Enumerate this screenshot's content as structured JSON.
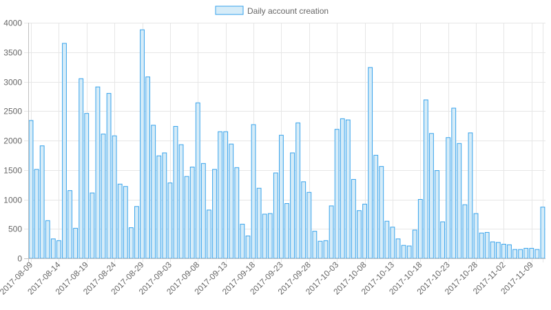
{
  "colors": {
    "bar_fill": "#d6ecf8",
    "bar_stroke": "#36a2eb",
    "grid": "#e6e6e6",
    "axis": "#bfbfbf",
    "text": "#666666"
  },
  "chart_data": {
    "type": "bar",
    "title": "",
    "xlabel": "",
    "ylabel": "",
    "ylim": [
      0,
      4000
    ],
    "yticks": [
      0,
      500,
      1000,
      1500,
      2000,
      2500,
      3000,
      3500,
      4000
    ],
    "grid": true,
    "legend_position": "top-center",
    "start_date": "2017-08-09",
    "label_every": 5,
    "x_tick_labels": [
      "2017-08-09",
      "2017-08-14",
      "2017-08-19",
      "2017-08-24",
      "2017-08-29",
      "2017-09-03",
      "2017-09-08",
      "2017-09-13",
      "2017-09-18",
      "2017-09-23",
      "2017-09-28",
      "2017-10-03",
      "2017-10-08",
      "2017-10-13",
      "2017-10-18",
      "2017-10-23",
      "2017-10-28",
      "2017-11-02",
      "2017-11-09"
    ],
    "series": [
      {
        "name": "Daily account creation",
        "values": [
          2340,
          1510,
          1910,
          640,
          330,
          300,
          3650,
          1150,
          510,
          3050,
          2460,
          1110,
          2910,
          2110,
          2800,
          2080,
          1260,
          1220,
          520,
          880,
          3880,
          3080,
          2260,
          1740,
          1790,
          1280,
          2240,
          1930,
          1390,
          1550,
          2640,
          1610,
          820,
          1510,
          2150,
          2150,
          1940,
          1540,
          580,
          380,
          2270,
          1190,
          750,
          760,
          1450,
          2090,
          930,
          1790,
          2300,
          1300,
          1120,
          460,
          290,
          300,
          890,
          2190,
          2370,
          2350,
          1340,
          810,
          920,
          3240,
          1750,
          1560,
          630,
          530,
          330,
          220,
          210,
          480,
          1000,
          2690,
          2120,
          1490,
          620,
          2050,
          2550,
          1950,
          910,
          2130,
          760,
          430,
          440,
          280,
          270,
          240,
          230,
          150,
          150,
          170,
          170,
          150,
          870
        ]
      }
    ]
  }
}
